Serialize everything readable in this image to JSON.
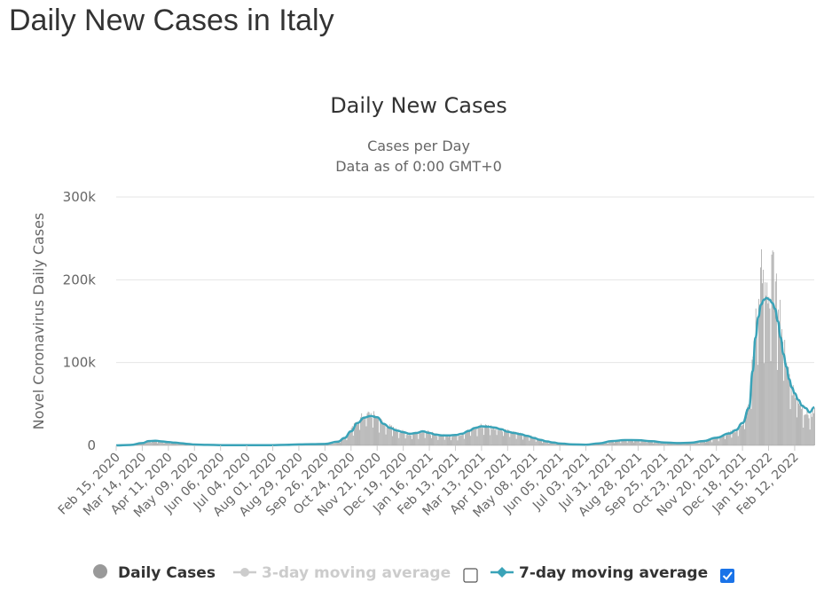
{
  "page_title": "Daily New Cases in Italy",
  "colors": {
    "bar": "#a0a0a0",
    "avg7": "#3aa3b8",
    "avg3": "#cccccc",
    "grid": "#e6e6e6",
    "checkbox": "#1a73e8"
  },
  "chart_data": {
    "type": "bar",
    "title": "Daily New Cases",
    "subtitle": "Cases per Day",
    "subtitle2": "Data as of 0:00 GMT+0",
    "ylabel": "Novel Coronavirus Daily Cases",
    "ylim": [
      0,
      300000
    ],
    "yticks": [
      0,
      100000,
      200000,
      300000
    ],
    "ytick_labels": [
      "0",
      "100k",
      "200k",
      "300k"
    ],
    "xrange": [
      "2020-02-15",
      "2022-03-05"
    ],
    "xtick_labels": [
      "Feb 15, 2020",
      "Mar 14, 2020",
      "Apr 11, 2020",
      "May 09, 2020",
      "Jun 06, 2020",
      "Jul 04, 2020",
      "Aug 01, 2020",
      "Aug 29, 2020",
      "Sep 26, 2020",
      "Oct 24, 2020",
      "Nov 21, 2020",
      "Dec 19, 2020",
      "Jan 16, 2021",
      "Feb 13, 2021",
      "Mar 13, 2021",
      "Apr 10, 2021",
      "May 08, 2021",
      "Jun 05, 2021",
      "Jul 03, 2021",
      "Jul 31, 2021",
      "Aug 28, 2021",
      "Sep 25, 2021",
      "Oct 23, 2021",
      "Nov 20, 2021",
      "Dec 18, 2021",
      "Jan 15, 2022",
      "Feb 12, 2022"
    ],
    "xtick_dates": [
      "2020-02-15",
      "2020-03-14",
      "2020-04-11",
      "2020-05-09",
      "2020-06-06",
      "2020-07-04",
      "2020-08-01",
      "2020-08-29",
      "2020-09-26",
      "2020-10-24",
      "2020-11-21",
      "2020-12-19",
      "2021-01-16",
      "2021-02-13",
      "2021-03-13",
      "2021-04-10",
      "2021-05-08",
      "2021-06-05",
      "2021-07-03",
      "2021-07-31",
      "2021-08-28",
      "2021-09-25",
      "2021-10-23",
      "2021-11-20",
      "2021-12-18",
      "2022-01-15",
      "2022-02-12"
    ],
    "series": [
      {
        "name": "Daily Cases",
        "kind": "bar",
        "points": [
          [
            "2020-02-15",
            0
          ],
          [
            "2020-03-01",
            1500
          ],
          [
            "2020-03-14",
            3500
          ],
          [
            "2020-03-21",
            6500
          ],
          [
            "2020-03-28",
            5500
          ],
          [
            "2020-04-04",
            4500
          ],
          [
            "2020-04-11",
            3800
          ],
          [
            "2020-04-18",
            3000
          ],
          [
            "2020-04-25",
            2300
          ],
          [
            "2020-05-02",
            1500
          ],
          [
            "2020-05-09",
            1000
          ],
          [
            "2020-05-23",
            600
          ],
          [
            "2020-06-06",
            300
          ],
          [
            "2020-07-04",
            200
          ],
          [
            "2020-08-01",
            300
          ],
          [
            "2020-08-15",
            600
          ],
          [
            "2020-08-29",
            1300
          ],
          [
            "2020-09-12",
            1500
          ],
          [
            "2020-09-26",
            1800
          ],
          [
            "2020-10-10",
            5000
          ],
          [
            "2020-10-17",
            10000
          ],
          [
            "2020-10-24",
            19000
          ],
          [
            "2020-10-31",
            30000
          ],
          [
            "2020-11-07",
            37000
          ],
          [
            "2020-11-14",
            38000
          ],
          [
            "2020-11-21",
            34000
          ],
          [
            "2020-11-28",
            26000
          ],
          [
            "2020-12-05",
            22000
          ],
          [
            "2020-12-12",
            18000
          ],
          [
            "2020-12-19",
            16000
          ],
          [
            "2020-12-26",
            13000
          ],
          [
            "2021-01-02",
            16000
          ],
          [
            "2021-01-09",
            18000
          ],
          [
            "2021-01-16",
            15000
          ],
          [
            "2021-01-23",
            13000
          ],
          [
            "2021-01-30",
            12000
          ],
          [
            "2021-02-06",
            12000
          ],
          [
            "2021-02-13",
            12000
          ],
          [
            "2021-02-20",
            14000
          ],
          [
            "2021-02-27",
            18000
          ],
          [
            "2021-03-06",
            21000
          ],
          [
            "2021-03-13",
            24000
          ],
          [
            "2021-03-20",
            23000
          ],
          [
            "2021-03-27",
            22000
          ],
          [
            "2021-04-03",
            20000
          ],
          [
            "2021-04-10",
            17000
          ],
          [
            "2021-04-17",
            15000
          ],
          [
            "2021-04-24",
            14000
          ],
          [
            "2021-05-01",
            12000
          ],
          [
            "2021-05-08",
            9500
          ],
          [
            "2021-05-15",
            7000
          ],
          [
            "2021-05-22",
            5000
          ],
          [
            "2021-05-29",
            3500
          ],
          [
            "2021-06-05",
            2300
          ],
          [
            "2021-06-19",
            1200
          ],
          [
            "2021-07-03",
            900
          ],
          [
            "2021-07-17",
            2500
          ],
          [
            "2021-07-31",
            5500
          ],
          [
            "2021-08-14",
            6500
          ],
          [
            "2021-08-28",
            6500
          ],
          [
            "2021-09-11",
            5000
          ],
          [
            "2021-09-25",
            3500
          ],
          [
            "2021-10-09",
            2800
          ],
          [
            "2021-10-23",
            3300
          ],
          [
            "2021-11-06",
            5500
          ],
          [
            "2021-11-20",
            9500
          ],
          [
            "2021-12-04",
            15000
          ],
          [
            "2021-12-11",
            19000
          ],
          [
            "2021-12-18",
            28000
          ],
          [
            "2021-12-25",
            50000
          ],
          [
            "2021-12-29",
            110000
          ],
          [
            "2022-01-01",
            150000
          ],
          [
            "2022-01-04",
            175000
          ],
          [
            "2022-01-07",
            210000
          ],
          [
            "2022-01-10",
            185000
          ],
          [
            "2022-01-13",
            200000
          ],
          [
            "2022-01-16",
            170000
          ],
          [
            "2022-01-19",
            220000
          ],
          [
            "2022-01-22",
            180000
          ],
          [
            "2022-01-25",
            185000
          ],
          [
            "2022-01-28",
            150000
          ],
          [
            "2022-01-31",
            125000
          ],
          [
            "2022-02-03",
            105000
          ],
          [
            "2022-02-06",
            85000
          ],
          [
            "2022-02-09",
            70000
          ],
          [
            "2022-02-12",
            62000
          ],
          [
            "2022-02-16",
            55000
          ],
          [
            "2022-02-20",
            45000
          ],
          [
            "2022-02-24",
            40000
          ],
          [
            "2022-02-28",
            35000
          ],
          [
            "2022-03-05",
            40000
          ]
        ]
      },
      {
        "name": "7-day moving average",
        "kind": "line",
        "points": [
          [
            "2020-02-15",
            0
          ],
          [
            "2020-03-01",
            500
          ],
          [
            "2020-03-14",
            2800
          ],
          [
            "2020-03-21",
            5200
          ],
          [
            "2020-03-28",
            5600
          ],
          [
            "2020-04-04",
            4800
          ],
          [
            "2020-04-11",
            4000
          ],
          [
            "2020-04-18",
            3300
          ],
          [
            "2020-04-25",
            2600
          ],
          [
            "2020-05-02",
            1700
          ],
          [
            "2020-05-09",
            1100
          ],
          [
            "2020-05-23",
            650
          ],
          [
            "2020-06-06",
            350
          ],
          [
            "2020-07-04",
            220
          ],
          [
            "2020-08-01",
            300
          ],
          [
            "2020-08-15",
            600
          ],
          [
            "2020-08-29",
            1200
          ],
          [
            "2020-09-12",
            1450
          ],
          [
            "2020-09-26",
            1750
          ],
          [
            "2020-10-10",
            4500
          ],
          [
            "2020-10-17",
            9000
          ],
          [
            "2020-10-24",
            17000
          ],
          [
            "2020-10-31",
            27000
          ],
          [
            "2020-11-07",
            33500
          ],
          [
            "2020-11-14",
            35500
          ],
          [
            "2020-11-21",
            34000
          ],
          [
            "2020-11-28",
            26000
          ],
          [
            "2020-12-05",
            21000
          ],
          [
            "2020-12-12",
            18000
          ],
          [
            "2020-12-19",
            16000
          ],
          [
            "2020-12-26",
            14000
          ],
          [
            "2021-01-02",
            15000
          ],
          [
            "2021-01-09",
            17000
          ],
          [
            "2021-01-16",
            15000
          ],
          [
            "2021-01-23",
            13000
          ],
          [
            "2021-01-30",
            12000
          ],
          [
            "2021-02-06",
            12000
          ],
          [
            "2021-02-13",
            12500
          ],
          [
            "2021-02-20",
            14000
          ],
          [
            "2021-02-27",
            17500
          ],
          [
            "2021-03-06",
            21000
          ],
          [
            "2021-03-13",
            23000
          ],
          [
            "2021-03-20",
            22500
          ],
          [
            "2021-03-27",
            21500
          ],
          [
            "2021-04-03",
            19500
          ],
          [
            "2021-04-10",
            16500
          ],
          [
            "2021-04-17",
            15000
          ],
          [
            "2021-04-24",
            13500
          ],
          [
            "2021-05-01",
            11500
          ],
          [
            "2021-05-08",
            9000
          ],
          [
            "2021-05-15",
            6800
          ],
          [
            "2021-05-22",
            4800
          ],
          [
            "2021-05-29",
            3400
          ],
          [
            "2021-06-05",
            2200
          ],
          [
            "2021-06-19",
            1200
          ],
          [
            "2021-07-03",
            900
          ],
          [
            "2021-07-17",
            2500
          ],
          [
            "2021-07-31",
            5300
          ],
          [
            "2021-08-14",
            6400
          ],
          [
            "2021-08-28",
            6300
          ],
          [
            "2021-09-11",
            5000
          ],
          [
            "2021-09-25",
            3500
          ],
          [
            "2021-10-09",
            2800
          ],
          [
            "2021-10-23",
            3200
          ],
          [
            "2021-11-06",
            5300
          ],
          [
            "2021-11-20",
            9200
          ],
          [
            "2021-12-04",
            14500
          ],
          [
            "2021-12-11",
            18500
          ],
          [
            "2021-12-18",
            27000
          ],
          [
            "2021-12-25",
            45000
          ],
          [
            "2021-12-29",
            90000
          ],
          [
            "2022-01-01",
            130000
          ],
          [
            "2022-01-04",
            155000
          ],
          [
            "2022-01-07",
            170000
          ],
          [
            "2022-01-10",
            176000
          ],
          [
            "2022-01-13",
            178000
          ],
          [
            "2022-01-16",
            176000
          ],
          [
            "2022-01-19",
            172000
          ],
          [
            "2022-01-22",
            165000
          ],
          [
            "2022-01-25",
            150000
          ],
          [
            "2022-01-28",
            130000
          ],
          [
            "2022-01-31",
            110000
          ],
          [
            "2022-02-03",
            95000
          ],
          [
            "2022-02-06",
            80000
          ],
          [
            "2022-02-09",
            70000
          ],
          [
            "2022-02-12",
            63000
          ],
          [
            "2022-02-16",
            55000
          ],
          [
            "2022-02-20",
            48000
          ],
          [
            "2022-02-24",
            45000
          ],
          [
            "2022-02-28",
            40000
          ],
          [
            "2022-03-05",
            46000
          ]
        ]
      }
    ],
    "legend": {
      "placement": "bottom",
      "items": [
        {
          "label": "Daily Cases",
          "enabled": true,
          "marker": "circle",
          "checkbox": false
        },
        {
          "label": "3-day moving average",
          "enabled": false,
          "marker": "line-circle",
          "checkbox": true,
          "checked": false
        },
        {
          "label": "7-day moving average",
          "enabled": true,
          "marker": "line-diamond",
          "checkbox": true,
          "checked": true
        }
      ]
    },
    "grid": true
  }
}
